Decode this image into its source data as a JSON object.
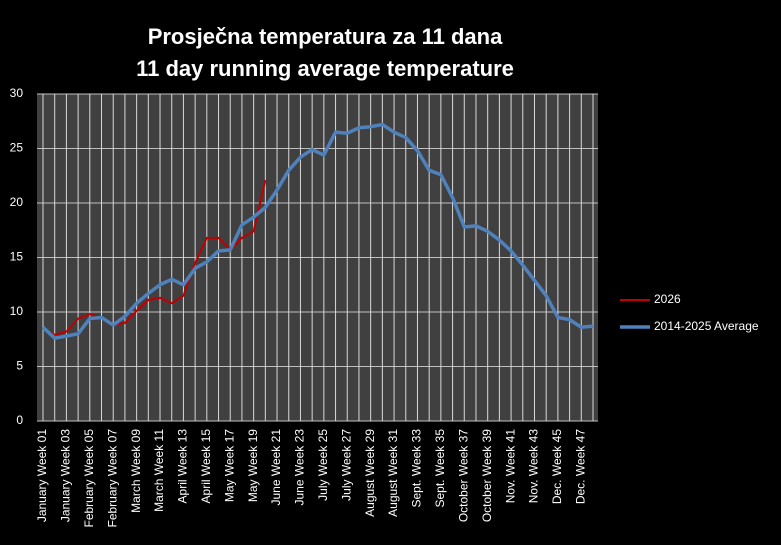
{
  "chart_data": {
    "type": "line",
    "title": "Prosječna temperatura za 11 dana",
    "subtitle": "11 day running average temperature",
    "categories": [
      "January Week 01",
      null,
      "January Week 03",
      null,
      "February Week 05",
      null,
      "February Week 07",
      null,
      "March Week 09",
      null,
      "March Week 11",
      null,
      "April Week 13",
      null,
      "April Week 15",
      null,
      "May Week 17",
      null,
      "May Week 19",
      null,
      "June Week 21",
      null,
      "June Week 23",
      null,
      "July Week 25",
      null,
      "July Week 27",
      null,
      "August Week 29",
      null,
      "August Week 31",
      null,
      "Sept. Week 33",
      null,
      "Sept. Week 35",
      null,
      "October Week 37",
      null,
      "October Week 39",
      null,
      "Nov. Week 41",
      null,
      "Nov. Week 43",
      null,
      "Dec. Week 45",
      null,
      "Dec. Week 47",
      null
    ],
    "series": [
      {
        "name": "2026",
        "color": "#c00000",
        "width": 2,
        "values": [
          8.5,
          7.9,
          8.2,
          9.4,
          9.8,
          9.5,
          8.8,
          9.0,
          10.1,
          11.1,
          11.3,
          10.8,
          11.5,
          14.5,
          16.8,
          16.8,
          15.7,
          16.8,
          17.4,
          22.1,
          null,
          null,
          null,
          null,
          null,
          null,
          null,
          null,
          null,
          null,
          null,
          null,
          null,
          null,
          null,
          null,
          null,
          null,
          null,
          null,
          null,
          null,
          null,
          null,
          null,
          null,
          null,
          null
        ]
      },
      {
        "name": "2014-2025 Average",
        "color": "#4f81bd",
        "width": 3.5,
        "values": [
          8.6,
          7.6,
          7.8,
          8.0,
          9.4,
          9.5,
          8.8,
          9.6,
          10.8,
          11.7,
          12.5,
          13.0,
          12.5,
          14.0,
          14.6,
          15.6,
          15.7,
          18.0,
          18.7,
          19.6,
          21.2,
          23.0,
          24.2,
          24.9,
          24.4,
          26.5,
          26.4,
          26.9,
          27.0,
          27.2,
          26.5,
          26.0,
          24.8,
          23.0,
          22.6,
          20.5,
          17.8,
          17.9,
          17.4,
          16.6,
          15.6,
          14.3,
          12.9,
          11.5,
          9.5,
          9.3,
          8.6,
          8.7
        ]
      }
    ],
    "ylim": [
      0,
      30
    ],
    "yticks": [
      0,
      5,
      10,
      15,
      20,
      25,
      30
    ],
    "grid": true,
    "legend": "right"
  }
}
